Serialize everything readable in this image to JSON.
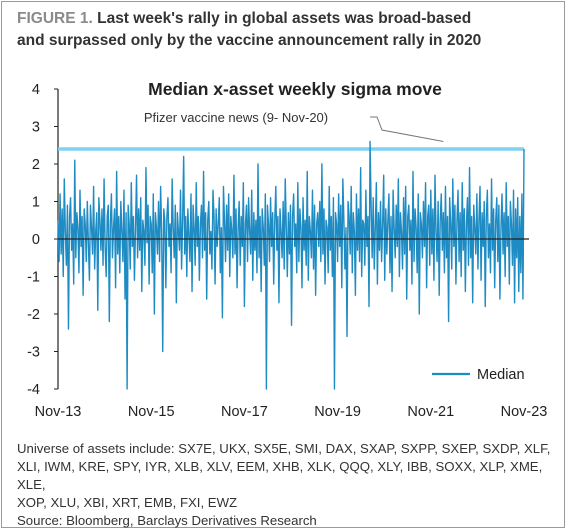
{
  "figure": {
    "label": "FIGURE 1.",
    "title_line1": " Last week's rally in global assets was broad-based",
    "title_line2": "and surpassed only by the vaccine announcement rally in 2020"
  },
  "chart_data": {
    "type": "line",
    "title": "Median x-asset weekly sigma move",
    "xlabel": "",
    "ylabel": "",
    "x_ticks": [
      "Nov-13",
      "Nov-15",
      "Nov-17",
      "Nov-19",
      "Nov-21",
      "Nov-23"
    ],
    "x_range": [
      "Nov-13",
      "Nov-23"
    ],
    "ylim": [
      -4,
      4
    ],
    "y_ticks": [
      -4,
      -3,
      -2,
      -1,
      0,
      1,
      2,
      3,
      4
    ],
    "grid": false,
    "legend": {
      "position": "bottom-right",
      "entries": [
        "Median"
      ]
    },
    "series": [
      {
        "name": "Median",
        "color": "#1e8bc3",
        "x_start": "2013-11",
        "frequency": "weekly",
        "values": [
          0.5,
          -0.6,
          1.2,
          -0.4,
          0.8,
          -1.0,
          1.6,
          0.2,
          -0.7,
          0.9,
          -2.4,
          0.6,
          1.1,
          -0.3,
          0.4,
          -1.2,
          2.1,
          -0.5,
          0.7,
          0.3,
          -0.9,
          1.3,
          -0.2,
          0.6,
          -1.5,
          0.8,
          0.4,
          -0.6,
          1.0,
          -0.1,
          -1.1,
          0.9,
          0.3,
          -0.4,
          1.4,
          -0.8,
          0.2,
          0.7,
          -1.9,
          1.1,
          0.5,
          -0.3,
          0.8,
          -0.7,
          1.6,
          -0.2,
          -1.0,
          0.6,
          0.9,
          -2.2,
          0.4,
          1.2,
          -0.5,
          0.3,
          0.8,
          -1.3,
          1.8,
          -0.4,
          0.6,
          -0.9,
          1.0,
          0.2,
          -0.6,
          1.3,
          -1.6,
          0.7,
          -4.0,
          0.9,
          0.4,
          -0.8,
          1.5,
          -0.2,
          0.6,
          -1.1,
          0.3,
          1.7,
          -0.5,
          0.8,
          -0.3,
          1.1,
          -1.4,
          0.5,
          0.2,
          -0.7,
          1.9,
          -0.1,
          0.9,
          -1.2,
          0.6,
          0.4,
          -0.9,
          1.2,
          -2.0,
          0.7,
          0.3,
          -0.4,
          1.0,
          -0.6,
          1.4,
          0.2,
          -3.0,
          0.8,
          0.5,
          -1.3,
          0.6,
          1.1,
          -0.2,
          0.4,
          -0.9,
          1.6,
          0.3,
          -0.5,
          0.9,
          -1.7,
          0.7,
          0.2,
          -0.3,
          1.3,
          -0.8,
          0.5,
          2.2,
          -0.4,
          0.6,
          -1.0,
          0.8,
          0.1,
          -0.6,
          1.2,
          -1.4,
          0.9,
          0.3,
          -0.7,
          1.5,
          -0.2,
          0.6,
          -1.1,
          0.4,
          0.9,
          -0.5,
          1.8,
          -0.3,
          0.7,
          -1.6,
          0.5,
          1.0,
          -0.4,
          0.2,
          -0.8,
          1.3,
          0.6,
          -1.2,
          0.8,
          -0.2,
          0.4,
          1.1,
          -0.9,
          0.3,
          -2.1,
          1.4,
          0.5,
          -0.6,
          0.9,
          -0.3,
          1.2,
          -1.0,
          0.6,
          0.2,
          -0.5,
          1.7,
          -0.4,
          0.8,
          -1.3,
          0.3,
          1.0,
          -0.7,
          0.6,
          -0.2,
          1.5,
          -1.8,
          0.4,
          0.9,
          -0.6,
          1.1,
          0.2,
          -0.4,
          1.3,
          -1.1,
          0.7,
          -0.3,
          0.5,
          -0.9,
          2.0,
          -0.5,
          0.6,
          -1.4,
          0.8,
          0.3,
          -0.7,
          1.2,
          -4.0,
          0.9,
          0.4,
          -0.6,
          1.1,
          -0.2,
          0.7,
          -1.2,
          0.5,
          1.4,
          -0.3,
          0.6,
          -1.7,
          0.8,
          0.2,
          -0.5,
          1.0,
          -0.8,
          1.6,
          0.3,
          -1.0,
          0.7,
          -0.4,
          0.9,
          -2.3,
          0.6,
          1.2,
          -0.2,
          0.4,
          -0.9,
          1.5,
          -0.6,
          0.8,
          0.3,
          -1.3,
          1.1,
          -0.3,
          0.5,
          -0.7,
          1.8,
          -1.1,
          0.6,
          0.2,
          -0.5,
          1.3,
          -0.8,
          0.9,
          -1.5,
          0.4,
          0.7,
          -0.2,
          1.0,
          -0.6,
          2.0,
          -0.4,
          0.8,
          -1.2,
          0.5,
          0.3,
          -0.9,
          1.4,
          -0.3,
          0.6,
          -1.0,
          1.1,
          -4.0,
          0.7,
          0.4,
          -0.6,
          1.2,
          -0.2,
          0.9,
          -1.3,
          1.6,
          0.5,
          -0.8,
          0.3,
          -2.6,
          1.0,
          0.6,
          -0.4,
          1.4,
          -0.9,
          0.7,
          0.2,
          -1.5,
          1.2,
          -0.3,
          0.8,
          -0.6,
          1.9,
          -1.0,
          0.5,
          0.4,
          -0.7,
          1.3,
          -0.2,
          0.6,
          -1.8,
          2.6,
          0.9,
          -0.5,
          1.1,
          -0.8,
          0.3,
          1.5,
          -1.2,
          0.7,
          -0.3,
          1.0,
          -0.6,
          0.4,
          1.7,
          -1.1,
          0.8,
          -0.4,
          0.5,
          1.2,
          -0.9,
          0.6,
          -1.4,
          1.3,
          0.3,
          -0.5,
          0.9,
          -0.2,
          1.6,
          -1.0,
          0.7,
          0.2,
          -0.8,
          1.1,
          -0.4,
          1.4,
          -1.6,
          0.6,
          0.9,
          -0.3,
          0.5,
          -1.2,
          1.8,
          -0.6,
          0.8,
          0.3,
          -0.9,
          1.2,
          -2.0,
          0.7,
          0.4,
          -0.5,
          1.0,
          -0.2,
          1.5,
          -1.3,
          0.6,
          0.9,
          -0.7,
          1.3,
          -0.4,
          0.8,
          -1.1,
          1.7,
          0.2,
          -0.6,
          1.0,
          -1.5,
          0.5,
          1.2,
          -0.3,
          0.7,
          -0.9,
          1.4,
          -0.5,
          0.6,
          -2.2,
          1.1,
          0.4,
          -0.8,
          1.6,
          -0.2,
          0.9,
          -1.2,
          0.5,
          1.3,
          -0.6,
          0.7,
          -1.0,
          1.5,
          -0.3,
          0.8,
          -1.4,
          0.4,
          1.1,
          -0.7,
          1.9,
          -0.5,
          0.6,
          -1.7,
          0.9,
          0.3,
          -0.4,
          1.2,
          -0.8,
          0.5,
          1.4,
          -1.1,
          0.7,
          -0.2,
          1.0,
          -1.8,
          0.6,
          1.3,
          -0.5,
          0.4,
          -0.9,
          1.6,
          -0.3,
          0.8,
          -1.3,
          0.5,
          1.1,
          -0.6,
          0.9,
          -1.6,
          0.3,
          1.2,
          -0.4,
          0.7,
          -1.0,
          1.5,
          -0.2,
          0.6,
          -1.2,
          1.0,
          0.4,
          -0.7,
          1.3,
          -1.7,
          0.8,
          -0.5,
          1.1,
          -1.4,
          0.6,
          -0.9,
          1.2,
          -1.6,
          2.4
        ]
      }
    ],
    "reference_line": {
      "value": 2.4,
      "color": "#7fd3f2"
    },
    "annotation": {
      "text": "Pfizer vaccine news (9- Nov-20)",
      "x_index": 368
    }
  },
  "footer": {
    "universe_lines": [
      "Universe of assets include: SX7E, UKX, SX5E, SMI, DAX, SXAP, SXPP, SXEP, SXDP, XLF,",
      "XLI, IWM, KRE, SPY, IYR, XLB, XLV, EEM, XHB, XLK, QQQ, XLY, IBB, SOXX, XLP, XME, XLE,",
      "XOP, XLU, XBI, XRT, EMB, FXI, EWZ"
    ],
    "source": "Source: Bloomberg, Barclays Derivatives Research"
  }
}
